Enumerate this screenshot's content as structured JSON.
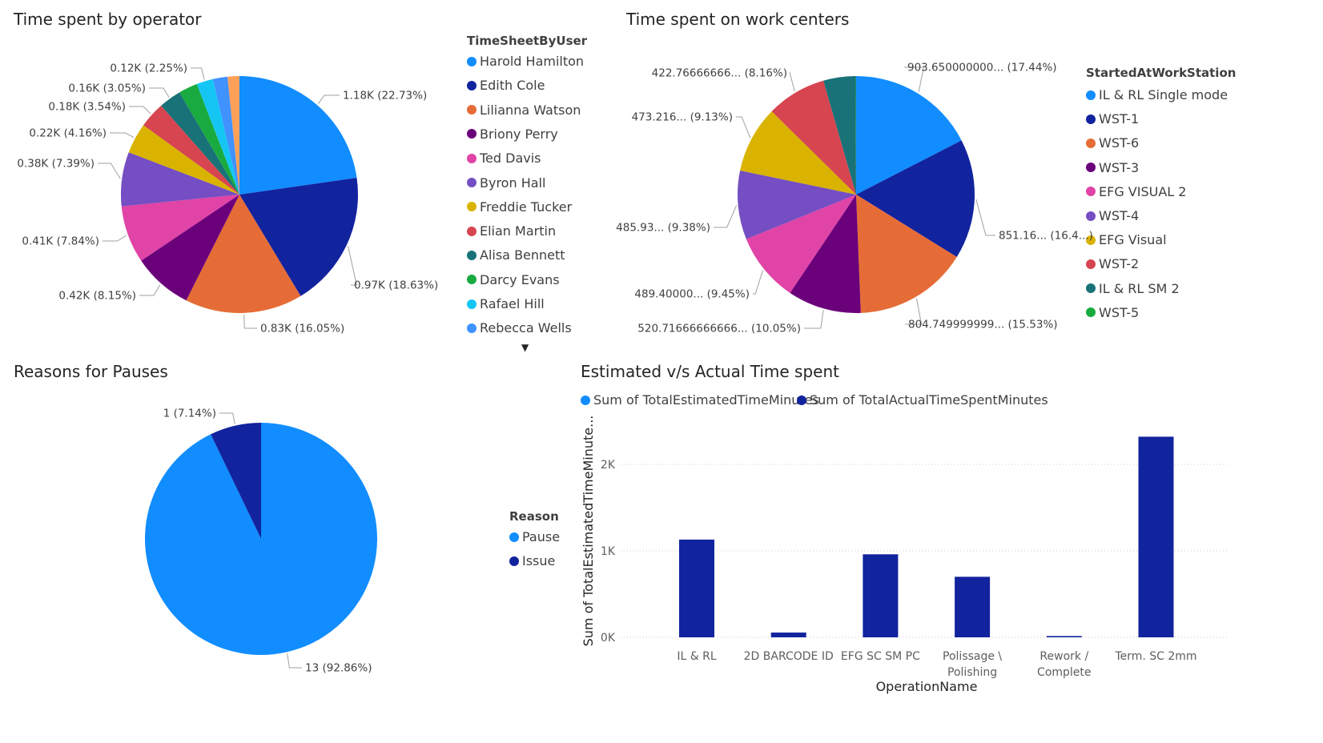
{
  "panels": {
    "operator": {
      "title": "Time spent by operator",
      "legend_title": "TimeSheetByUser",
      "more_indicator": "▼"
    },
    "workcenter": {
      "title": "Time spent on work centers",
      "legend_title": "StartedAtWorkStation"
    },
    "pauses": {
      "title": "Reasons for Pauses",
      "legend_title": "Reason"
    },
    "estimated": {
      "title": "Estimated v/s Actual Time spent"
    }
  },
  "chart_data": [
    {
      "type": "pie",
      "title": "Time spent by operator",
      "legend_title": "TimeSheetByUser",
      "slices": [
        {
          "name": "Harold Hamilton",
          "pct": 22.73,
          "label": "1.18K (22.73%)",
          "color": "#118DFF"
        },
        {
          "name": "Edith Cole",
          "pct": 18.63,
          "label": "0.97K (18.63%)",
          "color": "#12239E"
        },
        {
          "name": "Lilianna Watson",
          "pct": 16.05,
          "label": "0.83K (16.05%)",
          "color": "#E66C37"
        },
        {
          "name": "Briony Perry",
          "pct": 8.15,
          "label": "0.42K (8.15%)",
          "color": "#6B007B"
        },
        {
          "name": "Ted Davis",
          "pct": 7.84,
          "label": "0.41K (7.84%)",
          "color": "#E044A7"
        },
        {
          "name": "Byron Hall",
          "pct": 7.39,
          "label": "0.38K (7.39%)",
          "color": "#744EC2"
        },
        {
          "name": "Freddie Tucker",
          "pct": 4.16,
          "label": "0.22K (4.16%)",
          "color": "#D9B300"
        },
        {
          "name": "Elian Martin",
          "pct": 3.54,
          "label": "0.18K (3.54%)",
          "color": "#D64550"
        },
        {
          "name": "Alisa Bennett",
          "pct": 3.05,
          "label": "0.16K (3.05%)",
          "color": "#197278"
        },
        {
          "name": "Darcy Evans",
          "pct": 2.6,
          "label": "",
          "color": "#1AAB40"
        },
        {
          "name": "Rafael Hill",
          "pct": 2.25,
          "label": "0.12K (2.25%)",
          "color": "#15C6F4"
        },
        {
          "name": "Rebecca Wells",
          "pct": 2.0,
          "label": "",
          "color": "#4092FF"
        },
        {
          "name": "",
          "pct": 1.6,
          "label": "",
          "color": "#FFA058"
        }
      ]
    },
    {
      "type": "pie",
      "title": "Time spent on work centers",
      "legend_title": "StartedAtWorkStation",
      "slices": [
        {
          "name": "IL & RL Single mode",
          "pct": 17.44,
          "label": "903.650000000... (17.44%)",
          "color": "#118DFF"
        },
        {
          "name": "WST-1",
          "pct": 16.4,
          "label": "851.16... (16.4...)",
          "color": "#12239E"
        },
        {
          "name": "WST-6",
          "pct": 15.53,
          "label": "804.749999999... (15.53%)",
          "color": "#E66C37"
        },
        {
          "name": "WST-3",
          "pct": 10.05,
          "label": "520.71666666666... (10.05%)",
          "color": "#6B007B"
        },
        {
          "name": "EFG VISUAL 2",
          "pct": 9.45,
          "label": "489.40000... (9.45%)",
          "color": "#E044A7"
        },
        {
          "name": "WST-4",
          "pct": 9.38,
          "label": "485.93... (9.38%)",
          "color": "#744EC2"
        },
        {
          "name": "EFG Visual",
          "pct": 9.13,
          "label": "473.216... (9.13%)",
          "color": "#D9B300"
        },
        {
          "name": "WST-2",
          "pct": 8.16,
          "label": "422.76666666... (8.16%)",
          "color": "#D64550"
        },
        {
          "name": "IL & RL SM 2",
          "pct": 4.4,
          "label": "",
          "color": "#197278"
        },
        {
          "name": "WST-5",
          "pct": 0.06,
          "label": "",
          "color": "#1AAB40"
        }
      ]
    },
    {
      "type": "pie",
      "title": "Reasons for Pauses",
      "legend_title": "Reason",
      "slices": [
        {
          "name": "Pause",
          "pct": 92.86,
          "label": "13 (92.86%)",
          "color": "#118DFF"
        },
        {
          "name": "Issue",
          "pct": 7.14,
          "label": "1 (7.14%)",
          "color": "#12239E"
        }
      ]
    },
    {
      "type": "bar",
      "title": "Estimated v/s Actual Time spent",
      "xlabel": "OperationName",
      "ylabel": "Sum of TotalEstimatedTimeMinute...",
      "ylim": [
        0,
        2400
      ],
      "yticks": [
        {
          "v": 0,
          "t": "0K"
        },
        {
          "v": 1000,
          "t": "1K"
        },
        {
          "v": 2000,
          "t": "2K"
        }
      ],
      "categories": [
        "IL & RL",
        "2D BARCODE ID",
        "EFG SC SM PC",
        "Polissage \\ Polishing",
        "Rework / Complete",
        "Term. SC 2mm"
      ],
      "category_lines": [
        [
          "IL & RL"
        ],
        [
          "2D BARCODE ID"
        ],
        [
          "EFG SC SM PC"
        ],
        [
          "Polissage \\",
          "Polishing"
        ],
        [
          "Rework /",
          "Complete"
        ],
        [
          "Term. SC 2mm"
        ]
      ],
      "series": [
        {
          "name": "Sum of TotalEstimatedTimeMinutes",
          "color": "#118DFF",
          "values": [
            0,
            0,
            0,
            0,
            0,
            0
          ]
        },
        {
          "name": "Sum of TotalActualTimeSpentMinutes",
          "color": "#12239E",
          "values": [
            1130,
            55,
            960,
            700,
            15,
            2320
          ]
        }
      ],
      "grid": true,
      "legend": "top-left"
    }
  ]
}
